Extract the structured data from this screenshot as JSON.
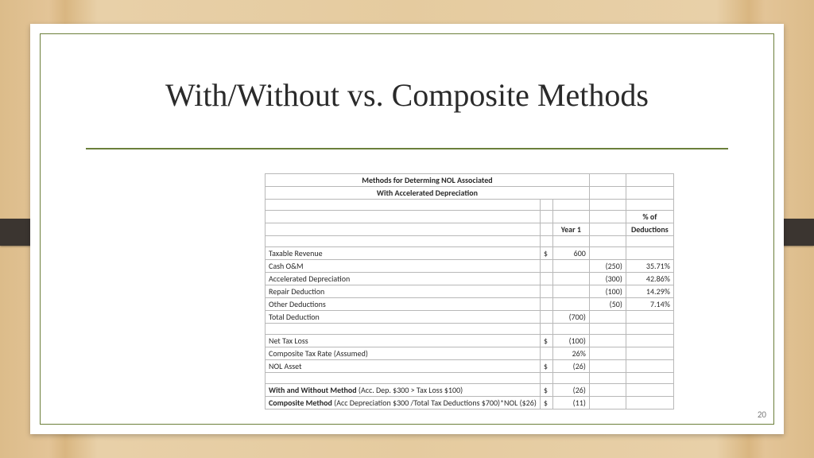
{
  "slide": {
    "title": "With/Without vs. Composite Methods",
    "pageNumber": "20"
  },
  "table": {
    "header1": "Methods for Determing NOL Associated",
    "header2": "With Accelerated Depreciation",
    "colYear": "Year 1",
    "colPct1": "% of",
    "colPct2": "Deductions",
    "rows": {
      "taxRev": {
        "label": "Taxable Revenue",
        "sym": "$",
        "v1": "600",
        "v2": "",
        "pct": ""
      },
      "cashOM": {
        "label": "Cash O&M",
        "sym": "",
        "v1": "",
        "v2": "(250)",
        "pct": "35.71%"
      },
      "accDep": {
        "label": "Accelerated Depreciation",
        "sym": "",
        "v1": "",
        "v2": "(300)",
        "pct": "42.86%"
      },
      "repair": {
        "label": "Repair Deduction",
        "sym": "",
        "v1": "",
        "v2": "(100)",
        "pct": "14.29%"
      },
      "other": {
        "label": "Other Deductions",
        "sym": "",
        "v1": "",
        "v2": "(50)",
        "pct": "7.14%"
      },
      "totDed": {
        "label": "Total Deduction",
        "sym": "",
        "v1": "(700)",
        "v2": "",
        "pct": ""
      },
      "netLoss": {
        "label": "Net Tax Loss",
        "sym": "$",
        "v1": "(100)",
        "v2": "",
        "pct": ""
      },
      "compRate": {
        "label": "Composite Tax Rate (Assumed)",
        "sym": "",
        "v1": "26%",
        "v2": "",
        "pct": ""
      },
      "nolAsset": {
        "label": "NOL Asset",
        "sym": "$",
        "v1": "(26)",
        "v2": "",
        "pct": ""
      },
      "withWo": {
        "bold": "With and Without Method",
        "rest": " (Acc. Dep. $300 > Tax Loss $100)",
        "sym": "$",
        "v1": "(26)"
      },
      "compMeth": {
        "bold": "Composite Method",
        "rest": " (Acc Depreciation $300 /Total Tax Deductions $700)*NOL ($26)",
        "sym": "$",
        "v1": "(11)"
      }
    }
  },
  "style": {
    "accent": "#6b7f3a",
    "border": "#b8b8b8",
    "titleFont": "Garamond",
    "bodyFont": "Calibri",
    "titleSizePt": 40,
    "tableSizePt": 10
  }
}
